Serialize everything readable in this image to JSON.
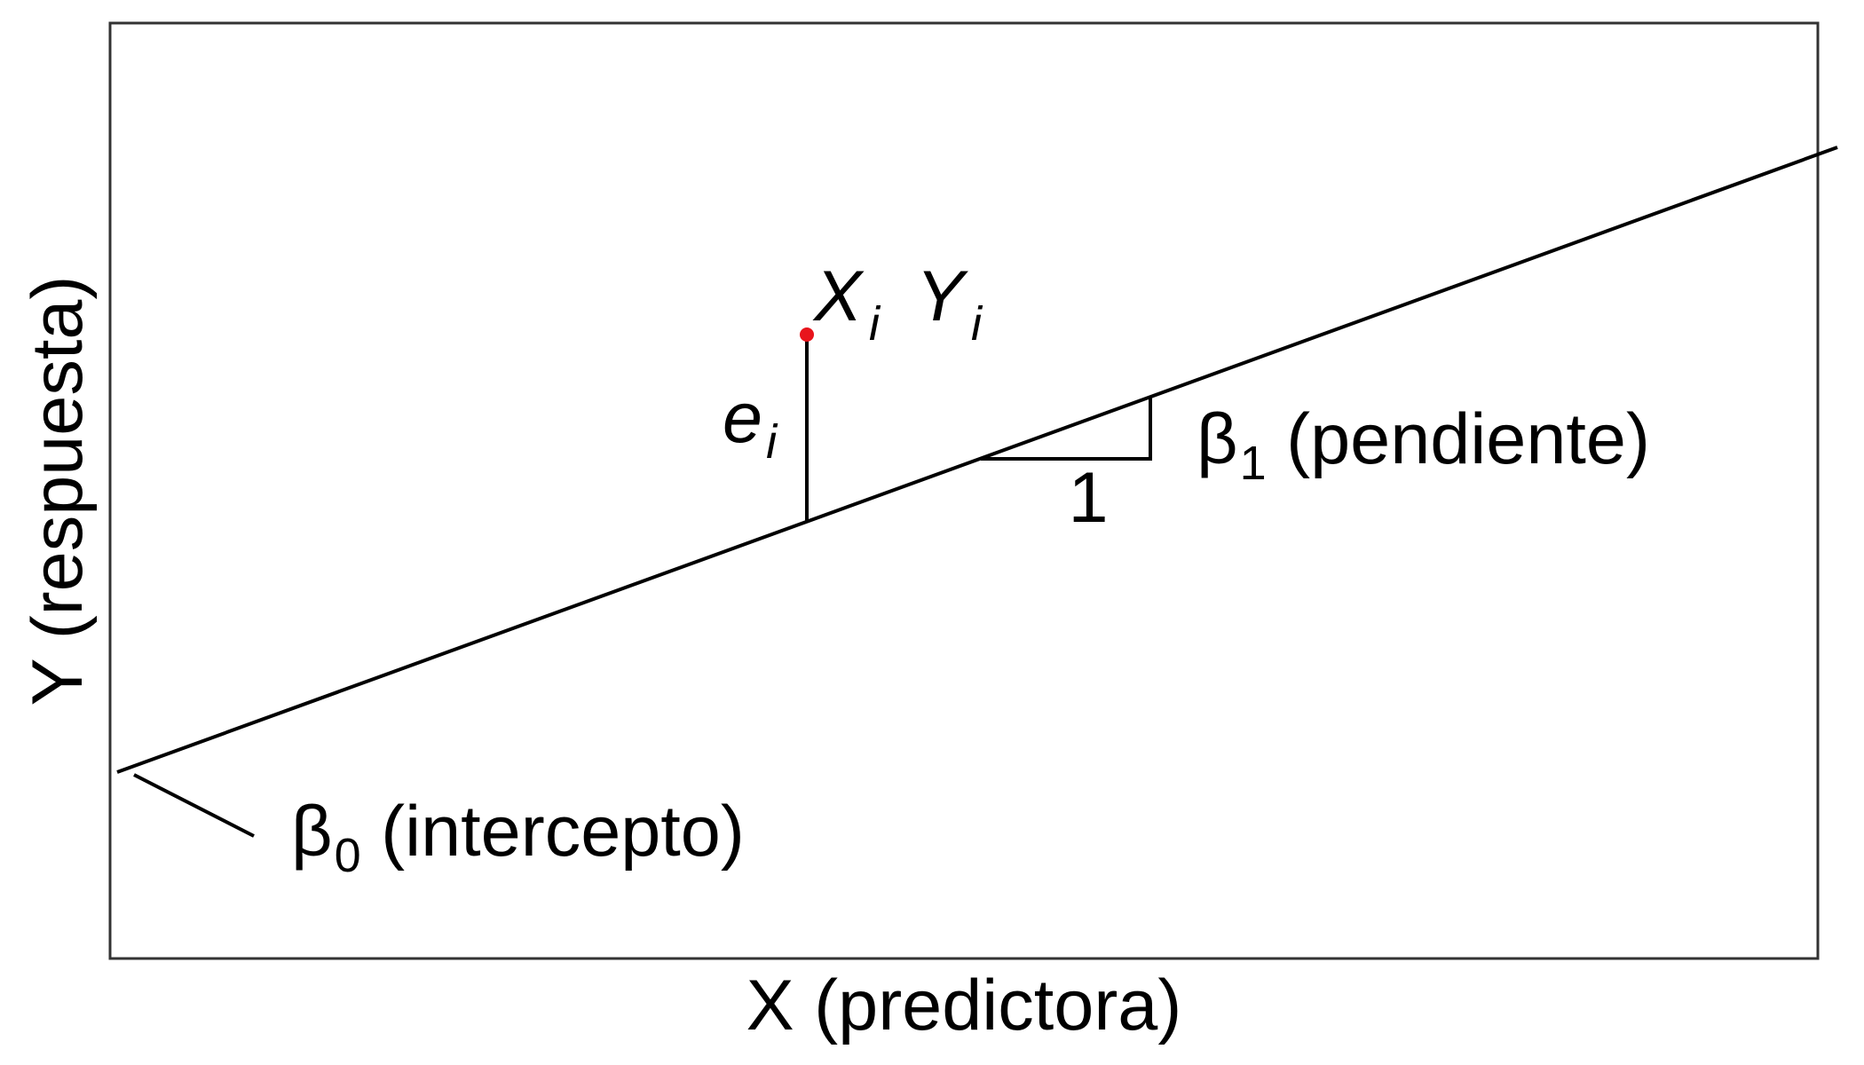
{
  "diagram": {
    "x_axis_label": "X (predictora)",
    "y_axis_label": "Y (respuesta)",
    "point_x_symbol": "X",
    "point_y_symbol": "Y",
    "point_subscript": "i",
    "residual_symbol": "e",
    "residual_subscript": "i",
    "slope_symbol": "β",
    "slope_subscript": "1",
    "slope_text": " (pendiente)",
    "unit_run_label": "1",
    "intercept_symbol": "β",
    "intercept_subscript": "0",
    "intercept_text": " (intercepto)",
    "colors": {
      "line": "#000000",
      "frame": "#333333",
      "point": "#e8141c",
      "text": "#000000"
    }
  }
}
